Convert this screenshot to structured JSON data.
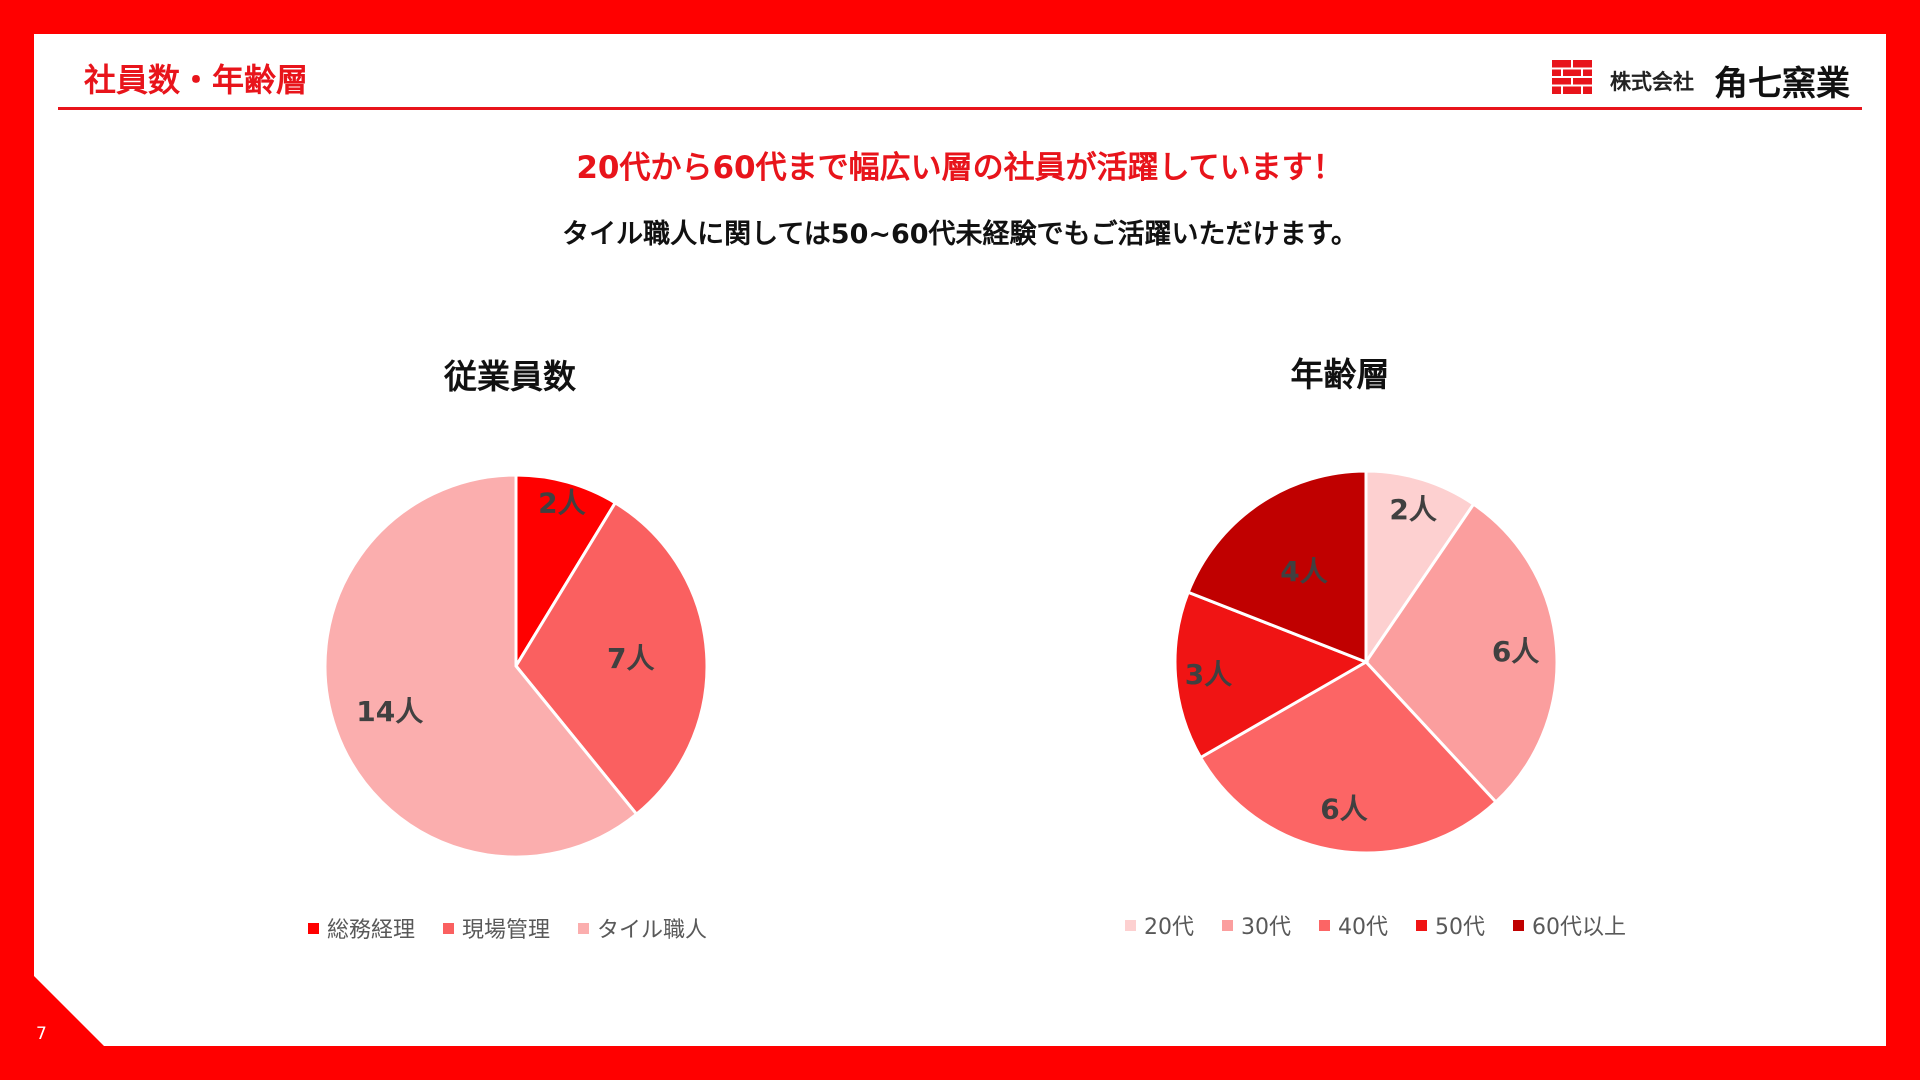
{
  "header": {
    "title": "社員数・年齢層"
  },
  "logo": {
    "icon": "brick-logo-icon",
    "prefix": "株式会社",
    "name": "角七窯業",
    "color": "#e8141b"
  },
  "headline": "20代から60代まで幅広い層の社員が活躍しています！",
  "subline": "タイル職人に関しては50~60代未経験でもご活躍いただけます。",
  "page_number": "7",
  "colors": {
    "frame": "#ff0000",
    "accent": "#e8141b"
  },
  "chart_data": [
    {
      "type": "pie",
      "title": "従業員数",
      "unit": "人",
      "categories": [
        "総務経理",
        "現場管理",
        "タイル職人"
      ],
      "values": [
        2,
        7,
        14
      ],
      "labels": [
        "2人",
        "7人",
        "14人"
      ],
      "colors": [
        "#ff0000",
        "#fa6060",
        "#fbaeae"
      ],
      "legend_position": "bottom"
    },
    {
      "type": "pie",
      "title": "年齢層",
      "unit": "人",
      "categories": [
        "20代",
        "30代",
        "40代",
        "50代",
        "60代以上"
      ],
      "values": [
        2,
        6,
        6,
        3,
        4
      ],
      "labels": [
        "2人",
        "6人",
        "6人",
        "3人",
        "4人"
      ],
      "colors": [
        "#fdd0d0",
        "#fb9e9e",
        "#fc6565",
        "#f01414",
        "#c00000"
      ],
      "legend_position": "bottom"
    }
  ]
}
